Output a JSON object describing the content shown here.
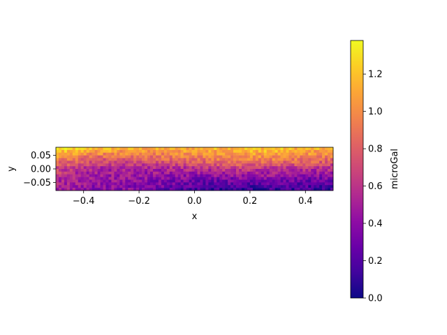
{
  "chart_data": {
    "type": "heatmap",
    "title": "",
    "xlabel": "x",
    "ylabel": "y",
    "xlim": [
      -0.5,
      0.5
    ],
    "ylim": [
      -0.08,
      0.08
    ],
    "x_ticks": [
      -0.4,
      -0.2,
      0.0,
      0.2,
      0.4
    ],
    "x_tick_labels": [
      "−0.4",
      "−0.2",
      "0.0",
      "0.2",
      "0.4"
    ],
    "y_ticks": [
      0.05,
      0.0,
      -0.05
    ],
    "y_tick_labels": [
      "0.05",
      "0.00",
      "−0.05"
    ],
    "colormap": "plasma",
    "colorbar": {
      "label": "microGal",
      "range": [
        0.0,
        1.38
      ],
      "ticks": [
        0.0,
        0.2,
        0.4,
        0.6,
        0.8,
        1.0,
        1.2
      ],
      "tick_labels": [
        "0.0",
        "0.2",
        "0.4",
        "0.6",
        "0.8",
        "1.0",
        "1.2"
      ]
    },
    "field_description_rows_top_to_bottom": [
      {
        "y": 0.075,
        "values_left_to_right": [
          1.3,
          1.2,
          1.15,
          1.1,
          1.1,
          1.15,
          1.2,
          1.2,
          1.15,
          1.1
        ]
      },
      {
        "y": 0.04,
        "values_left_to_right": [
          1.0,
          0.85,
          0.8,
          0.85,
          0.9,
          0.95,
          1.0,
          1.0,
          0.95,
          0.9
        ]
      },
      {
        "y": 0.0,
        "values_left_to_right": [
          0.7,
          0.55,
          0.5,
          0.5,
          0.55,
          0.6,
          0.65,
          0.6,
          0.6,
          0.55
        ]
      },
      {
        "y": -0.04,
        "values_left_to_right": [
          0.55,
          0.45,
          0.45,
          0.4,
          0.35,
          0.3,
          0.35,
          0.35,
          0.3,
          0.3
        ]
      },
      {
        "y": -0.075,
        "values_left_to_right": [
          0.5,
          0.4,
          0.4,
          0.35,
          0.2,
          0.15,
          0.1,
          0.15,
          0.15,
          0.1
        ]
      }
    ]
  }
}
